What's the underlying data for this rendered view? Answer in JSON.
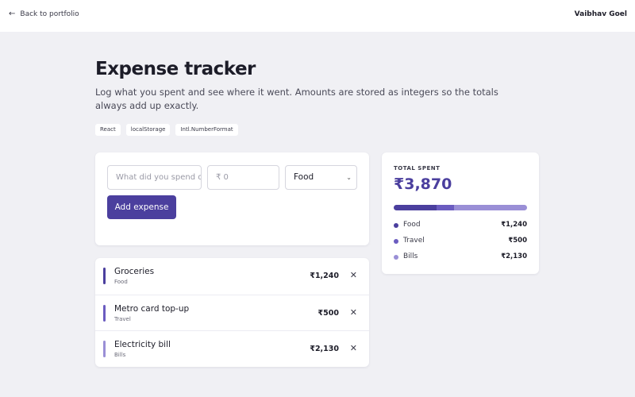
{
  "header": {
    "back_label": "Back to portfolio",
    "author": "Vaibhav Goel"
  },
  "page": {
    "title": "Expense tracker",
    "subtitle": "Log what you spent and see where it went. Amounts are stored as integers so the totals always add up exactly.",
    "tags": [
      "React",
      "localStorage",
      "Intl.NumberFormat"
    ]
  },
  "form": {
    "description_placeholder": "What did you spend on?",
    "amount_placeholder": "₹ 0",
    "category_value": "Food",
    "add_label": "Add expense"
  },
  "expenses": [
    {
      "name": "Groceries",
      "category": "Food",
      "amount": "₹1,240",
      "color": "#4b3f9e"
    },
    {
      "name": "Metro card top-up",
      "category": "Travel",
      "amount": "₹500",
      "color": "#6b5cc0"
    },
    {
      "name": "Electricity bill",
      "category": "Bills",
      "amount": "₹2,130",
      "color": "#9a8fd6"
    }
  ],
  "summary": {
    "label": "TOTAL SPENT",
    "total": "₹3,870",
    "breakdown": [
      {
        "name": "Food",
        "amount": "₹1,240",
        "value": 1240,
        "color": "#4b3f9e"
      },
      {
        "name": "Travel",
        "amount": "₹500",
        "value": 500,
        "color": "#6b5cc0"
      },
      {
        "name": "Bills",
        "amount": "₹2,130",
        "value": 2130,
        "color": "#9a8fd6"
      }
    ]
  },
  "icons": {
    "back": "arrow-left-icon",
    "delete": "close-icon",
    "select": "chevron-down-icon"
  }
}
